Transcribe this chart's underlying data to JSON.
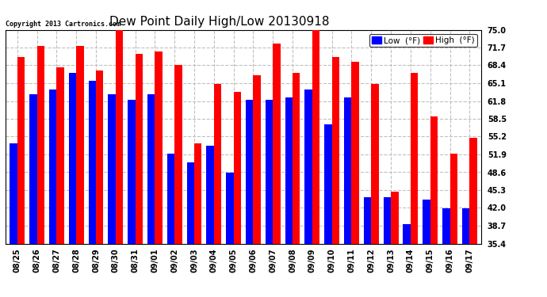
{
  "title": "Dew Point Daily High/Low 20130918",
  "copyright": "Copyright 2013 Cartronics.com",
  "dates": [
    "08/25",
    "08/26",
    "08/27",
    "08/28",
    "08/29",
    "08/30",
    "08/31",
    "09/01",
    "09/02",
    "09/03",
    "09/04",
    "09/05",
    "09/06",
    "09/07",
    "09/08",
    "09/09",
    "09/10",
    "09/11",
    "09/12",
    "09/13",
    "09/14",
    "09/15",
    "09/16",
    "09/17"
  ],
  "low_values": [
    54.0,
    63.0,
    64.0,
    67.0,
    65.5,
    63.0,
    62.0,
    63.0,
    52.0,
    50.5,
    53.5,
    48.5,
    62.0,
    62.0,
    62.5,
    64.0,
    57.5,
    62.5,
    44.0,
    44.0,
    39.0,
    43.5,
    42.0,
    42.0
  ],
  "high_values": [
    70.0,
    72.0,
    68.0,
    72.0,
    67.5,
    75.5,
    70.5,
    71.0,
    68.5,
    54.0,
    65.0,
    63.5,
    66.5,
    72.5,
    67.0,
    75.0,
    70.0,
    69.0,
    65.0,
    45.0,
    67.0,
    59.0,
    52.0,
    55.0
  ],
  "low_color": "#0000ff",
  "high_color": "#ff0000",
  "bg_color": "#ffffff",
  "grid_color": "#c0c0c0",
  "ymin": 35.4,
  "ymax": 75.0,
  "yticks": [
    35.4,
    38.7,
    42.0,
    45.3,
    48.6,
    51.9,
    55.2,
    58.5,
    61.8,
    65.1,
    68.4,
    71.7,
    75.0
  ],
  "bar_width": 0.38,
  "title_fontsize": 11,
  "tick_fontsize": 7,
  "legend_fontsize": 7.5
}
